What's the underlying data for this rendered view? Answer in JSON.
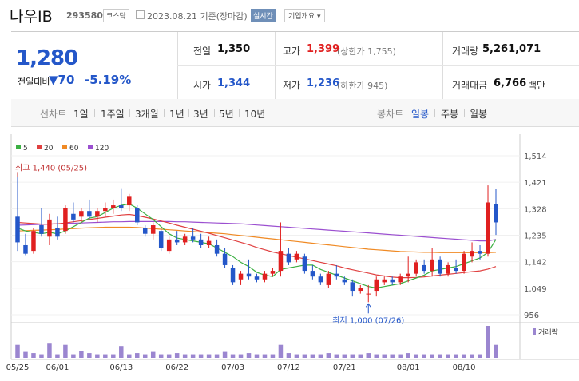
{
  "header": {
    "name": "나우IB",
    "code": "293580",
    "market": "코스닥",
    "date": "2023.08.21 기준(장마감)",
    "realtime_button": "실시간",
    "company_button": "기업개요"
  },
  "quote": {
    "price": "1,280",
    "change_label": "전일대비",
    "change_value": "70",
    "change_percent": "-5.19%",
    "prev_close_label": "전일",
    "prev_close": "1,350",
    "high_label": "고가",
    "high": "1,399",
    "high_limit": "(상한가 1,755)",
    "volume_label": "거래량",
    "volume": "5,261,071",
    "open_label": "시가",
    "open": "1,344",
    "low_label": "저가",
    "low": "1,236",
    "low_limit": "(하한가 945)",
    "amount_label": "거래대금",
    "amount": "6,766",
    "amount_unit": "백만"
  },
  "tabs": {
    "line_label": "선차트",
    "line_periods": [
      "1일",
      "1주일",
      "3개월",
      "1년",
      "3년",
      "5년",
      "10년"
    ],
    "candle_label": "봉차트",
    "candle_periods": [
      "일봉",
      "주봉",
      "월봉"
    ],
    "active_candle": "일봉"
  },
  "chart_data": {
    "type": "candlestick",
    "legend": [
      {
        "name": "5",
        "color": "#3cb043"
      },
      {
        "name": "20",
        "color": "#e04040"
      },
      {
        "name": "60",
        "color": "#f08a24"
      },
      {
        "name": "120",
        "color": "#9b4fd0"
      }
    ],
    "ylim": [
      956,
      1514
    ],
    "y_ticks": [
      "1,514",
      "1,421",
      "1,328",
      "1,235",
      "1,142",
      "1,049",
      "956"
    ],
    "x_ticks": [
      {
        "label": "05/25",
        "i": 0
      },
      {
        "label": "06/01",
        "i": 5
      },
      {
        "label": "06/13",
        "i": 13
      },
      {
        "label": "06/22",
        "i": 20
      },
      {
        "label": "07/03",
        "i": 27
      },
      {
        "label": "07/12",
        "i": 34
      },
      {
        "label": "07/21",
        "i": 41
      },
      {
        "label": "08/01",
        "i": 49
      },
      {
        "label": "08/10",
        "i": 56
      }
    ],
    "max_annotation": "최고 1,440 (05/25)",
    "min_annotation": "최저 1,000 (07/26)",
    "volume_label": "거래량",
    "candles": [
      [
        1300,
        1440,
        1180,
        1210
      ],
      [
        1200,
        1240,
        1165,
        1170
      ],
      [
        1180,
        1260,
        1170,
        1250
      ],
      [
        1270,
        1330,
        1230,
        1240
      ],
      [
        1230,
        1310,
        1200,
        1290
      ],
      [
        1260,
        1300,
        1220,
        1230
      ],
      [
        1250,
        1340,
        1240,
        1330
      ],
      [
        1310,
        1350,
        1280,
        1290
      ],
      [
        1300,
        1330,
        1280,
        1320
      ],
      [
        1320,
        1360,
        1290,
        1300
      ],
      [
        1300,
        1330,
        1280,
        1320
      ],
      [
        1320,
        1350,
        1300,
        1330
      ],
      [
        1330,
        1360,
        1310,
        1340
      ],
      [
        1340,
        1400,
        1320,
        1330
      ],
      [
        1340,
        1380,
        1320,
        1370
      ],
      [
        1330,
        1340,
        1270,
        1280
      ],
      [
        1260,
        1270,
        1230,
        1240
      ],
      [
        1240,
        1280,
        1220,
        1270
      ],
      [
        1250,
        1260,
        1180,
        1190
      ],
      [
        1180,
        1230,
        1170,
        1220
      ],
      [
        1220,
        1250,
        1200,
        1210
      ],
      [
        1210,
        1240,
        1200,
        1230
      ],
      [
        1230,
        1260,
        1210,
        1220
      ],
      [
        1220,
        1240,
        1190,
        1200
      ],
      [
        1200,
        1230,
        1190,
        1215
      ],
      [
        1200,
        1220,
        1160,
        1170
      ],
      [
        1170,
        1190,
        1120,
        1130
      ],
      [
        1120,
        1130,
        1060,
        1070
      ],
      [
        1080,
        1110,
        1060,
        1100
      ],
      [
        1100,
        1150,
        1080,
        1090
      ],
      [
        1090,
        1100,
        1070,
        1080
      ],
      [
        1080,
        1110,
        1070,
        1100
      ],
      [
        1100,
        1120,
        1090,
        1110
      ],
      [
        1110,
        1280,
        1090,
        1180
      ],
      [
        1170,
        1190,
        1130,
        1140
      ],
      [
        1150,
        1180,
        1140,
        1170
      ],
      [
        1160,
        1170,
        1100,
        1110
      ],
      [
        1110,
        1130,
        1080,
        1090
      ],
      [
        1090,
        1100,
        1060,
        1070
      ],
      [
        1060,
        1110,
        1050,
        1100
      ],
      [
        1100,
        1130,
        1080,
        1090
      ],
      [
        1080,
        1090,
        1060,
        1070
      ],
      [
        1070,
        1080,
        1020,
        1040
      ],
      [
        1040,
        1060,
        1030,
        1050
      ],
      [
        1030,
        1060,
        1000,
        1030
      ],
      [
        1040,
        1090,
        1020,
        1080
      ],
      [
        1070,
        1090,
        1060,
        1080
      ],
      [
        1080,
        1090,
        1060,
        1070
      ],
      [
        1070,
        1100,
        1060,
        1090
      ],
      [
        1090,
        1160,
        1070,
        1100
      ],
      [
        1100,
        1150,
        1090,
        1140
      ],
      [
        1130,
        1150,
        1100,
        1110
      ],
      [
        1110,
        1190,
        1090,
        1150
      ],
      [
        1150,
        1160,
        1090,
        1100
      ],
      [
        1100,
        1140,
        1090,
        1130
      ],
      [
        1120,
        1150,
        1100,
        1110
      ],
      [
        1110,
        1180,
        1100,
        1170
      ],
      [
        1160,
        1210,
        1140,
        1180
      ],
      [
        1180,
        1200,
        1150,
        1170
      ],
      [
        1170,
        1410,
        1160,
        1350
      ],
      [
        1344,
        1399,
        1236,
        1280
      ]
    ],
    "volumes": [
      11,
      5,
      4,
      3,
      12,
      3,
      11,
      3,
      6,
      4,
      3,
      3,
      3,
      10,
      3,
      4,
      3,
      5,
      3,
      3,
      4,
      3,
      3,
      3,
      3,
      3,
      5,
      3,
      3,
      4,
      3,
      3,
      3,
      11,
      4,
      3,
      3,
      3,
      3,
      4,
      3,
      3,
      3,
      3,
      4,
      3,
      3,
      3,
      3,
      4,
      3,
      3,
      3,
      3,
      3,
      3,
      3,
      3,
      3,
      27,
      11
    ],
    "ma5": [
      1260,
      1250,
      1245,
      1240,
      1245,
      1240,
      1250,
      1265,
      1280,
      1295,
      1300,
      1315,
      1330,
      1340,
      1345,
      1330,
      1310,
      1290,
      1265,
      1240,
      1225,
      1220,
      1215,
      1210,
      1205,
      1190,
      1175,
      1160,
      1140,
      1125,
      1105,
      1095,
      1090,
      1115,
      1120,
      1125,
      1130,
      1130,
      1115,
      1105,
      1095,
      1085,
      1075,
      1065,
      1055,
      1050,
      1055,
      1060,
      1065,
      1075,
      1085,
      1095,
      1110,
      1115,
      1120,
      1125,
      1135,
      1145,
      1155,
      1175,
      1220
    ],
    "ma20": [
      1280,
      1278,
      1276,
      1274,
      1274,
      1275,
      1278,
      1282,
      1286,
      1290,
      1294,
      1298,
      1302,
      1306,
      1308,
      1304,
      1298,
      1292,
      1285,
      1278,
      1270,
      1263,
      1256,
      1249,
      1242,
      1234,
      1226,
      1218,
      1210,
      1202,
      1192,
      1184,
      1176,
      1170,
      1164,
      1158,
      1152,
      1146,
      1140,
      1134,
      1128,
      1120,
      1114,
      1108,
      1102,
      1096,
      1092,
      1088,
      1086,
      1086,
      1087,
      1089,
      1092,
      1095,
      1098,
      1101,
      1104,
      1107,
      1110,
      1116,
      1125
    ],
    "ma60": [
      1250,
      1251,
      1252,
      1253,
      1254,
      1255,
      1257,
      1258,
      1260,
      1261,
      1262,
      1263,
      1263,
      1263,
      1263,
      1262,
      1260,
      1258,
      1256,
      1254,
      1252,
      1250,
      1248,
      1246,
      1244,
      1242,
      1240,
      1237,
      1234,
      1231,
      1228,
      1225,
      1222,
      1219,
      1216,
      1213,
      1210,
      1207,
      1204,
      1201,
      1198,
      1195,
      1192,
      1189,
      1186,
      1184,
      1182,
      1180,
      1178,
      1177,
      1176,
      1175,
      1175,
      1174,
      1174,
      1174,
      1174,
      1174,
      1174,
      1174,
      1175
    ],
    "ma120": [
      1270,
      1271,
      1272,
      1273,
      1274,
      1275,
      1276,
      1277,
      1278,
      1279,
      1280,
      1281,
      1282,
      1282,
      1283,
      1283,
      1283,
      1283,
      1283,
      1283,
      1282,
      1282,
      1281,
      1280,
      1279,
      1278,
      1277,
      1276,
      1275,
      1273,
      1271,
      1269,
      1267,
      1265,
      1263,
      1261,
      1259,
      1257,
      1255,
      1253,
      1251,
      1249,
      1247,
      1245,
      1243,
      1241,
      1239,
      1237,
      1235,
      1233,
      1231,
      1229,
      1227,
      1225,
      1223,
      1221,
      1219,
      1217,
      1215,
      1215,
      1220
    ]
  }
}
